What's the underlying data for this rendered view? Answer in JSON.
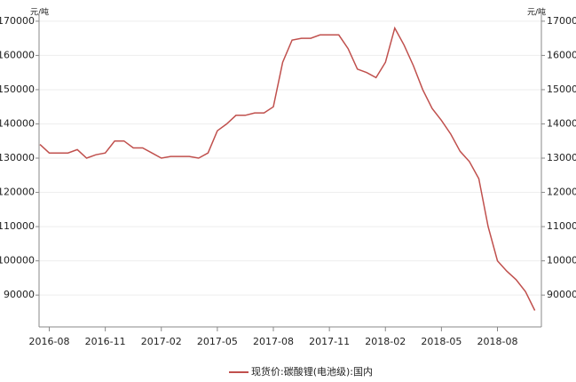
{
  "chart_data": {
    "type": "line",
    "y_unit": "元/吨",
    "categories": [
      null,
      "2016-08",
      null,
      null,
      null,
      null,
      null,
      "2016-11",
      null,
      null,
      null,
      null,
      null,
      "2017-02",
      null,
      null,
      null,
      null,
      null,
      "2017-05",
      null,
      null,
      null,
      null,
      null,
      "2017-08",
      null,
      null,
      null,
      null,
      null,
      "2017-11",
      null,
      null,
      null,
      null,
      null,
      "2018-02",
      null,
      null,
      null,
      null,
      null,
      "2018-05",
      null,
      null,
      null,
      null,
      null,
      "2018-08",
      null,
      null,
      null,
      null
    ],
    "series": [
      {
        "name": "现货价:碳酸锂(电池级):国内",
        "color": "#c0504d",
        "values": [
          134000,
          131500,
          131500,
          131500,
          132500,
          130000,
          131000,
          131500,
          135000,
          135000,
          133000,
          133000,
          131500,
          130000,
          130500,
          130500,
          130500,
          130000,
          131500,
          138000,
          140000,
          142500,
          142500,
          143200,
          143200,
          145000,
          158000,
          164500,
          165000,
          165000,
          166000,
          166000,
          166000,
          162000,
          156000,
          155000,
          153500,
          158000,
          168000,
          163000,
          157000,
          150000,
          144500,
          141000,
          137000,
          132000,
          129000,
          124000,
          110000,
          100000,
          97000,
          94500,
          91000,
          85500
        ]
      }
    ],
    "ylim": [
      80700,
      172300
    ],
    "yticks": [
      90000,
      100000,
      110000,
      120000,
      130000,
      140000,
      150000,
      160000,
      170000
    ],
    "grid": true,
    "legend": "bottom"
  }
}
